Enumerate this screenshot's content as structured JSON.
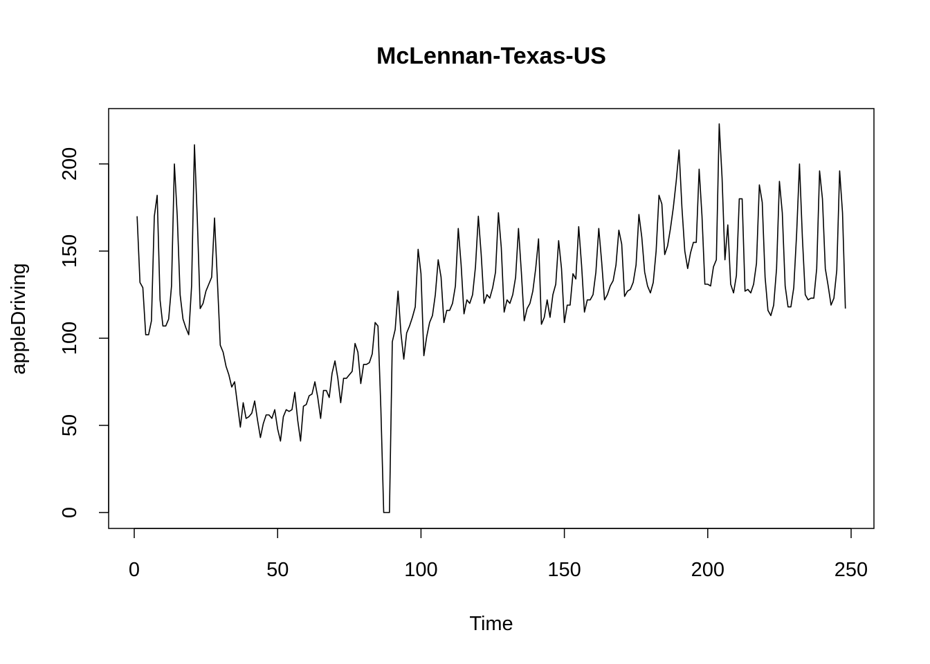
{
  "chart_data": {
    "type": "line",
    "title": "McLennan-Texas-US",
    "xlabel": "Time",
    "ylabel": "appleDriving",
    "xlim": [
      0,
      250
    ],
    "ylim": [
      0,
      200
    ],
    "x_ticks": [
      0,
      50,
      100,
      150,
      200,
      250
    ],
    "x_tick_labels": [
      "0",
      "50",
      "100",
      "150",
      "200",
      "250"
    ],
    "y_ticks": [
      0,
      50,
      100,
      150,
      200
    ],
    "y_tick_labels": [
      "0",
      "50",
      "100",
      "150",
      "200"
    ],
    "grid": false,
    "legend": "none",
    "x_start": 1,
    "x_step": 1,
    "values": [
      170,
      132,
      129,
      102,
      102,
      110,
      170,
      182,
      122,
      107,
      107,
      111,
      130,
      200,
      170,
      125,
      111,
      106,
      102,
      130,
      211,
      168,
      117,
      120,
      127,
      131,
      135,
      169,
      133,
      96,
      92,
      84,
      79,
      72,
      75,
      62,
      49,
      63,
      54,
      55,
      57,
      64,
      53,
      43,
      51,
      56,
      56,
      54,
      59,
      48,
      41,
      55,
      59,
      58,
      59,
      69,
      53,
      41,
      61,
      62,
      67,
      68,
      75,
      66,
      54,
      70,
      70,
      66,
      80,
      87,
      77,
      63,
      77,
      77,
      79,
      81,
      97,
      92,
      74,
      85,
      85,
      86,
      91,
      109,
      107,
      60,
      0,
      0,
      0,
      98,
      105,
      127,
      103,
      88,
      103,
      107,
      112,
      118,
      151,
      137,
      90,
      101,
      109,
      113,
      125,
      145,
      135,
      109,
      116,
      116,
      120,
      130,
      163,
      142,
      114,
      122,
      120,
      125,
      141,
      170,
      148,
      120,
      125,
      123,
      129,
      138,
      172,
      152,
      115,
      122,
      120,
      125,
      135,
      163,
      138,
      110,
      117,
      120,
      127,
      140,
      157,
      108,
      112,
      122,
      112,
      125,
      131,
      156,
      140,
      109,
      119,
      119,
      137,
      134,
      164,
      142,
      115,
      122,
      122,
      125,
      138,
      163,
      144,
      122,
      125,
      130,
      133,
      142,
      162,
      154,
      124,
      127,
      128,
      132,
      142,
      171,
      158,
      138,
      130,
      126,
      132,
      150,
      182,
      177,
      148,
      153,
      163,
      175,
      190,
      208,
      175,
      150,
      140,
      149,
      155,
      155,
      197,
      170,
      131,
      131,
      130,
      141,
      145,
      223,
      192,
      145,
      165,
      131,
      126,
      136,
      180,
      180,
      127,
      128,
      126,
      131,
      143,
      188,
      178,
      135,
      116,
      113,
      119,
      140,
      190,
      172,
      130,
      118,
      118,
      129,
      160,
      200,
      158,
      125,
      122,
      123,
      123,
      140,
      196,
      180,
      140,
      130,
      119,
      123,
      139,
      196,
      172,
      117
    ]
  }
}
